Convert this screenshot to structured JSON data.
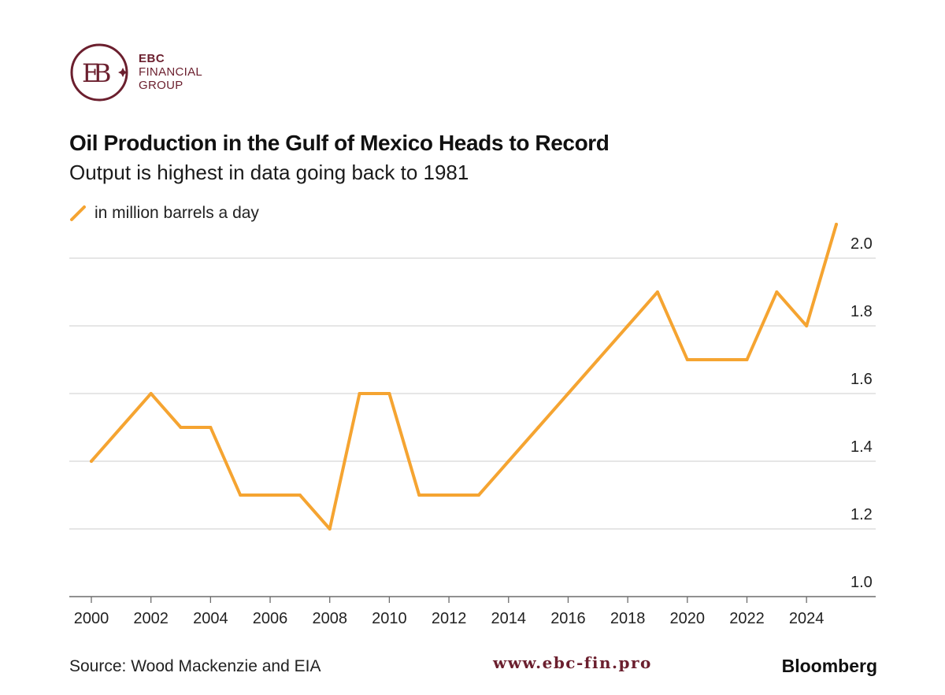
{
  "logo": {
    "line1": "EBC",
    "line2": "FINANCIAL",
    "line3": "GROUP",
    "color": "#6b1f2e"
  },
  "chart_data": {
    "type": "line",
    "title": "Oil Production in the Gulf of Mexico Heads to Record",
    "subtitle": "Output is highest in data going back to 1981",
    "xlabel": "",
    "ylabel": "",
    "x": [
      2000,
      2001,
      2002,
      2003,
      2004,
      2005,
      2006,
      2007,
      2008,
      2009,
      2010,
      2011,
      2012,
      2013,
      2014,
      2015,
      2016,
      2017,
      2018,
      2019,
      2020,
      2021,
      2022,
      2023,
      2024,
      2025
    ],
    "series": [
      {
        "name": "in million barrels a day",
        "color": "#f5a431",
        "values": [
          1.4,
          1.5,
          1.6,
          1.5,
          1.5,
          1.3,
          1.3,
          1.3,
          1.2,
          1.6,
          1.6,
          1.3,
          1.3,
          1.3,
          1.4,
          1.5,
          1.6,
          1.7,
          1.8,
          1.9,
          1.7,
          1.7,
          1.7,
          1.9,
          1.8,
          2.1
        ]
      }
    ],
    "xticks": [
      "2000",
      "2002",
      "2004",
      "2006",
      "2008",
      "2010",
      "2012",
      "2014",
      "2016",
      "2018",
      "2020",
      "2022",
      "2024"
    ],
    "yticks": [
      "1.0",
      "1.2",
      "1.4",
      "1.6",
      "1.8",
      "2.0"
    ],
    "xlim": [
      2000,
      2025
    ],
    "ylim": [
      1.0,
      2.0
    ],
    "grid": true,
    "legend": "top-left",
    "y_axis_side": "right"
  },
  "footer": {
    "source": "Source: Wood Mackenzie and EIA",
    "website": "www.ebc-fin.pro",
    "brand": "Bloomberg"
  }
}
